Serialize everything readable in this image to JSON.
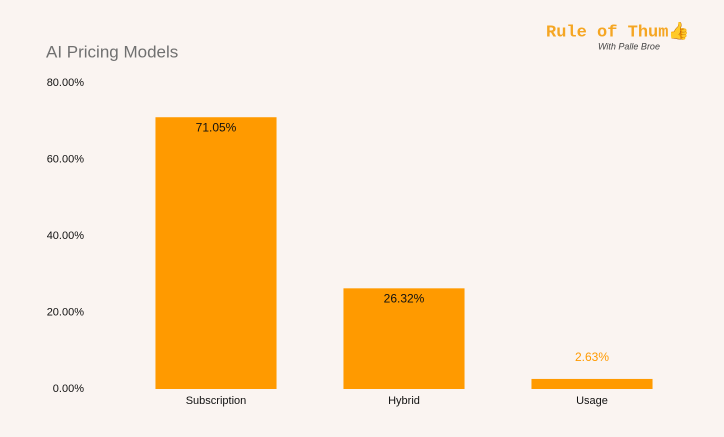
{
  "chart_data": {
    "type": "bar",
    "title": "AI Pricing Models",
    "brand": "Rule of Thum👍",
    "brand_subtitle": "With Palle Broe",
    "categories": [
      "Subscription",
      "Hybrid",
      "Usage"
    ],
    "values": [
      71.05,
      26.32,
      2.63
    ],
    "value_labels": [
      "71.05%",
      "26.32%",
      "2.63%"
    ],
    "color": "#ff9a00",
    "ylim": [
      0,
      80
    ],
    "yticks": [
      {
        "value": 0,
        "label": "0.00%"
      },
      {
        "value": 20,
        "label": "20.00%"
      },
      {
        "value": 40,
        "label": "40.00%"
      },
      {
        "value": 60,
        "label": "60.00%"
      },
      {
        "value": 80,
        "label": "80.00%"
      }
    ],
    "grid": false
  }
}
